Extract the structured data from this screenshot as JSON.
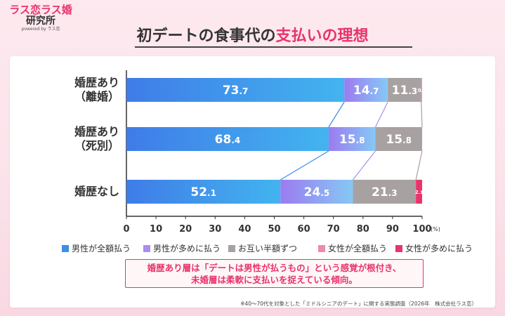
{
  "logo": {
    "main": "ラス恋ラス婚",
    "sub": "研究所",
    "powered": "powered by ラス恋"
  },
  "title": {
    "prefix": "初デートの食事代の",
    "highlight": "支払いの理想"
  },
  "colors": {
    "male_full": "#3b8fe6",
    "male_more": "#a98df0",
    "split": "#a8a1a1",
    "female_full": "#f08aa6",
    "female_more": "#e8336b",
    "accent": "#e8336b"
  },
  "chart_data": {
    "type": "bar",
    "orientation": "horizontal",
    "stacked": true,
    "categories": [
      [
        "婚歴あり",
        "（離婚）"
      ],
      [
        "婚歴あり",
        "（死別）"
      ],
      [
        "婚歴なし"
      ]
    ],
    "series": [
      {
        "name": "男性が全額払う",
        "color": "#3b8fe6",
        "values": [
          73.7,
          68.4,
          52.1
        ],
        "labels": [
          [
            "73",
            ".7"
          ],
          [
            "68",
            ".4"
          ],
          [
            "52",
            ".1"
          ]
        ]
      },
      {
        "name": "男性が多めに払う",
        "color": "#a98df0",
        "values": [
          14.7,
          15.8,
          24.5
        ],
        "labels": [
          [
            "14",
            ".7"
          ],
          [
            "15",
            ".8"
          ],
          [
            "24",
            ".5"
          ]
        ]
      },
      {
        "name": "お互い半額ずつ",
        "color": "#a8a1a1",
        "values": [
          11.3,
          15.8,
          21.3
        ],
        "labels": [
          [
            "11",
            ".3"
          ],
          [
            "15",
            ".8"
          ],
          [
            "21",
            ".3"
          ]
        ]
      },
      {
        "name": "女性が全額払う",
        "color": "#f08aa6",
        "values": [
          0.3,
          0.0,
          0.0
        ],
        "labels": [
          [
            "0",
            ".3"
          ],
          null,
          null
        ]
      },
      {
        "name": "女性が多めに払う",
        "color": "#e8336b",
        "values": [
          0.0,
          0.0,
          2.1
        ],
        "labels": [
          null,
          null,
          [
            "2",
            ".1"
          ]
        ]
      }
    ],
    "xlim": [
      0,
      100
    ],
    "xticks": [
      0,
      10,
      20,
      30,
      40,
      50,
      60,
      70,
      80,
      90,
      100
    ],
    "xunit": "(%)",
    "connector_lines": true,
    "legend_position": "bottom"
  },
  "note": {
    "line1": "婚歴あり層は「デートは男性が払うもの」という感覚が根付き、",
    "line2": "未婚層は柔軟に支払いを捉えている傾向。"
  },
  "footnote": "※40〜70代を対象とした「ミドルシニアのデート」に関する実態調査（2026年　株式会社ラス恋）"
}
